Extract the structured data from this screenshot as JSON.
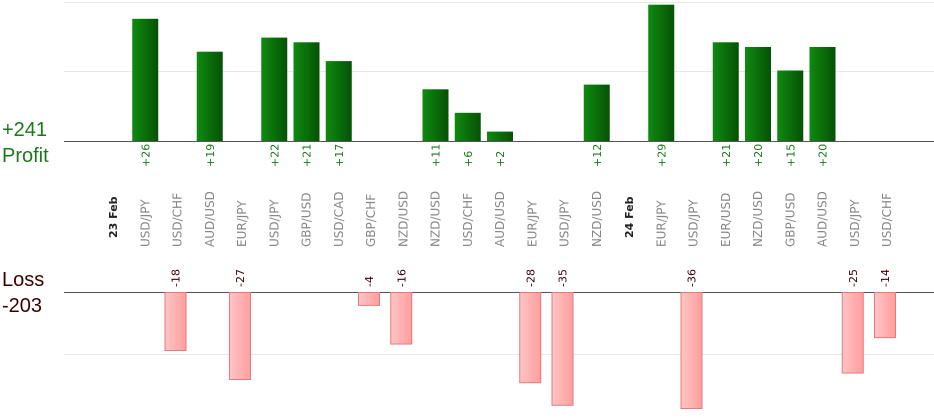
{
  "summary": {
    "profit_total": "+241",
    "profit_label": "Profit",
    "loss_label": "Loss",
    "loss_total": "-203"
  },
  "colors": {
    "profit_bar": "#0b6e0b",
    "profit_text": "#1a7a1a",
    "loss_bar": "#ffb3b3",
    "loss_bar_border": "#e57a7a",
    "loss_text": "#3a0000",
    "axis": "#555555",
    "grid": "#e8e8e8",
    "pair_label": "#888888",
    "date_label": "#222222"
  },
  "chart_data": {
    "type": "bar",
    "profit_ylim": [
      0,
      30
    ],
    "loss_ylim": [
      -36,
      0
    ],
    "grid": true,
    "columns": [
      {
        "label": "23 Feb",
        "kind": "date"
      },
      {
        "label": "USD/JPY",
        "kind": "pair",
        "value": 26
      },
      {
        "label": "USD/CHF",
        "kind": "pair",
        "value": -18
      },
      {
        "label": "AUD/USD",
        "kind": "pair",
        "value": 19
      },
      {
        "label": "EUR/JPY",
        "kind": "pair",
        "value": -27
      },
      {
        "label": "USD/JPY",
        "kind": "pair",
        "value": 22
      },
      {
        "label": "GBP/USD",
        "kind": "pair",
        "value": 21
      },
      {
        "label": "USD/CAD",
        "kind": "pair",
        "value": 17
      },
      {
        "label": "GBP/CHF",
        "kind": "pair",
        "value": -4
      },
      {
        "label": "NZD/USD",
        "kind": "pair",
        "value": -16
      },
      {
        "label": "NZD/USD",
        "kind": "pair",
        "value": 11
      },
      {
        "label": "USD/CHF",
        "kind": "pair",
        "value": 6
      },
      {
        "label": "AUD/USD",
        "kind": "pair",
        "value": 2
      },
      {
        "label": "EUR/JPY",
        "kind": "pair",
        "value": -28
      },
      {
        "label": "USD/JPY",
        "kind": "pair",
        "value": -35
      },
      {
        "label": "NZD/USD",
        "kind": "pair",
        "value": 12
      },
      {
        "label": "24 Feb",
        "kind": "date"
      },
      {
        "label": "EUR/JPY",
        "kind": "pair",
        "value": 29
      },
      {
        "label": "USD/JPY",
        "kind": "pair",
        "value": -36
      },
      {
        "label": "EUR/USD",
        "kind": "pair",
        "value": 21
      },
      {
        "label": "NZD/USD",
        "kind": "pair",
        "value": 20
      },
      {
        "label": "GBP/USD",
        "kind": "pair",
        "value": 15
      },
      {
        "label": "AUD/USD",
        "kind": "pair",
        "value": 20
      },
      {
        "label": "USD/JPY",
        "kind": "pair",
        "value": -25
      },
      {
        "label": "USD/CHF",
        "kind": "pair",
        "value": -14
      }
    ]
  }
}
